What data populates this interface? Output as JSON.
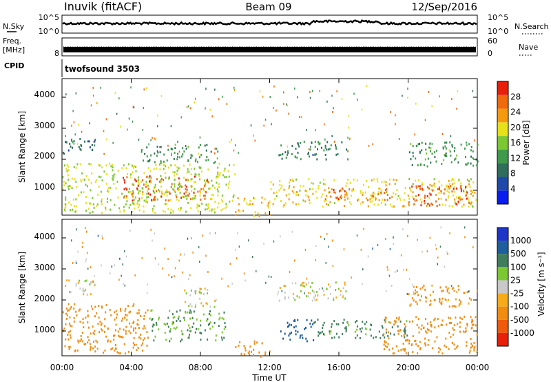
{
  "header": {
    "station": "Inuvik (fitACF)",
    "beam": "Beam 09",
    "date": "12/Sep/2016"
  },
  "strips": {
    "nsky_label": "N.Sky",
    "nsky_ticks": [
      "10^5",
      "10^0"
    ],
    "nsearch_label": "N.Search",
    "nsearch_ticks": [
      "10^5",
      "10^0"
    ],
    "freq_label": "Freq.",
    "freq_unit": "[MHz]",
    "freq_ticks": [
      "8"
    ],
    "nave_label": "Nave",
    "nave_ticks": [
      "60",
      "0"
    ],
    "cpid_label": "CPID",
    "cpid_value": "twofsound 3503"
  },
  "colors": {
    "power": [
      "#0a1cf0",
      "#1f49a8",
      "#2e6e5a",
      "#3f9a4c",
      "#7cc832",
      "#e8e11a",
      "#f59a0e",
      "#ef6a0d",
      "#e8200a"
    ],
    "velocity": [
      "#1f35c8",
      "#1f5e9c",
      "#3f7d5c",
      "#7cc832",
      "#c8c8c8",
      "#f6ab1a",
      "#f08c10",
      "#ef5a0d",
      "#e8200a"
    ]
  },
  "chart_data": [
    {
      "type": "heatmap",
      "quantity": "Power",
      "ylabel": "Slant Range [km]",
      "yticks": [
        "1000",
        "2000",
        "3000",
        "4000"
      ],
      "ylim": [
        200,
        4600
      ],
      "xlim": [
        "00:00",
        "24:00"
      ],
      "colorbar": {
        "label": "Power [dB]",
        "ticks": [
          "4",
          "8",
          "12",
          "16",
          "20",
          "24",
          "28"
        ],
        "range": [
          0,
          32
        ]
      },
      "bands": [
        {
          "t0": 0.0,
          "t1": 10.0,
          "r0": 300,
          "r1": 1900,
          "value": 18
        },
        {
          "t0": 3.5,
          "t1": 8.5,
          "r0": 700,
          "r1": 1500,
          "value": 27
        },
        {
          "t0": 0.0,
          "t1": 2.0,
          "r0": 2200,
          "r1": 2700,
          "value": 8
        },
        {
          "t0": 4.5,
          "t1": 9.0,
          "r0": 1900,
          "r1": 2500,
          "value": 12
        },
        {
          "t0": 10.0,
          "t1": 12.0,
          "r0": 200,
          "r1": 800,
          "value": 22
        },
        {
          "t0": 12.0,
          "t1": 24.0,
          "r0": 500,
          "r1": 1400,
          "value": 20
        },
        {
          "t0": 15.0,
          "t1": 19.0,
          "r0": 700,
          "r1": 1100,
          "value": 26
        },
        {
          "t0": 20.0,
          "t1": 23.5,
          "r0": 500,
          "r1": 1200,
          "value": 28
        },
        {
          "t0": 12.5,
          "t1": 16.5,
          "r0": 2000,
          "r1": 2600,
          "value": 10
        },
        {
          "t0": 20.0,
          "t1": 24.0,
          "r0": 1800,
          "r1": 2600,
          "value": 12
        }
      ]
    },
    {
      "type": "heatmap",
      "quantity": "Velocity",
      "ylabel": "Slant Range [km]",
      "yticks": [
        "1000",
        "2000",
        "3000",
        "4000"
      ],
      "ylim": [
        200,
        4600
      ],
      "xlim": [
        "00:00",
        "24:00"
      ],
      "xticks": [
        "00:00",
        "04:00",
        "08:00",
        "12:00",
        "16:00",
        "20:00",
        "00:00"
      ],
      "xlabel": "Time UT",
      "colorbar": {
        "label": "Velocity [m s⁻¹]",
        "ticks": [
          "1000",
          "500",
          "100",
          "25",
          "-25",
          "-100",
          "-500",
          "-1000"
        ]
      },
      "bands": [
        {
          "t0": 0.0,
          "t1": 5.0,
          "r0": 300,
          "r1": 1900,
          "value": -300
        },
        {
          "t0": 5.0,
          "t1": 9.5,
          "r0": 700,
          "r1": 1700,
          "value": 100
        },
        {
          "t0": 7.0,
          "t1": 9.0,
          "r0": 1800,
          "r1": 2400,
          "value": 0
        },
        {
          "t0": 0.0,
          "t1": 2.0,
          "r0": 2200,
          "r1": 2700,
          "value": 0
        },
        {
          "t0": 10.0,
          "t1": 12.0,
          "r0": 200,
          "r1": 700,
          "value": -200
        },
        {
          "t0": 12.5,
          "t1": 14.5,
          "r0": 700,
          "r1": 1400,
          "value": 700
        },
        {
          "t0": 14.5,
          "t1": 20.0,
          "r0": 800,
          "r1": 1400,
          "value": 150
        },
        {
          "t0": 18.5,
          "t1": 24.0,
          "r0": 300,
          "r1": 1500,
          "value": -250
        },
        {
          "t0": 12.5,
          "t1": 16.5,
          "r0": 2000,
          "r1": 2600,
          "value": 0
        },
        {
          "t0": 20.0,
          "t1": 24.0,
          "r0": 1800,
          "r1": 2500,
          "value": -120
        }
      ]
    }
  ]
}
